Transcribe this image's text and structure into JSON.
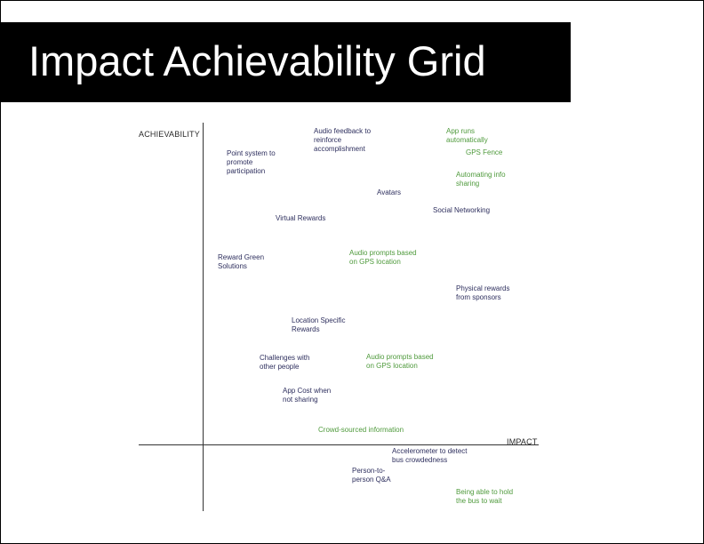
{
  "title": "Impact Achievability Grid",
  "axes": {
    "y_label": "ACHIEVABILITY",
    "x_label": "IMPACT"
  },
  "colors": {
    "navy": "#2e2f5e",
    "green": "#4f9a3c"
  },
  "items": [
    {
      "text": "Audio feedback to\nreinforce\naccomplishment",
      "color": "navy"
    },
    {
      "text": "App runs\nautomatically",
      "color": "green"
    },
    {
      "text": "Point system to\npromote\nparticipation",
      "color": "navy"
    },
    {
      "text": "GPS Fence",
      "color": "green"
    },
    {
      "text": "Automating info\nsharing",
      "color": "green"
    },
    {
      "text": "Avatars",
      "color": "navy"
    },
    {
      "text": "Social Networking",
      "color": "navy"
    },
    {
      "text": "Virtual Rewards",
      "color": "navy"
    },
    {
      "text": "Reward Green\nSolutions",
      "color": "navy"
    },
    {
      "text": "Audio prompts based\non GPS location",
      "color": "green"
    },
    {
      "text": "Physical rewards\nfrom sponsors",
      "color": "navy"
    },
    {
      "text": "Location Specific\nRewards",
      "color": "navy"
    },
    {
      "text": "Challenges with\nother people",
      "color": "navy"
    },
    {
      "text": "Audio prompts based\non GPS location",
      "color": "green"
    },
    {
      "text": "App Cost when\nnot sharing",
      "color": "navy"
    },
    {
      "text": "Crowd-sourced information",
      "color": "green"
    },
    {
      "text": "Accelerometer to detect\nbus crowdedness",
      "color": "navy"
    },
    {
      "text": "Person-to-\nperson Q&A",
      "color": "navy"
    },
    {
      "text": "Being able to hold\nthe bus to wait",
      "color": "green"
    }
  ]
}
